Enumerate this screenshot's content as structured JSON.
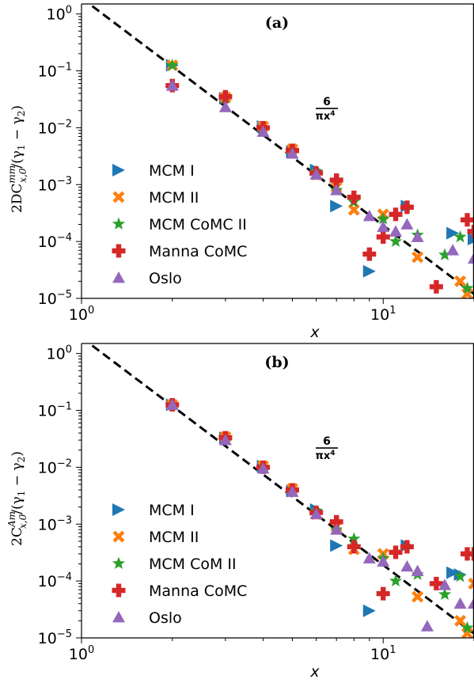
{
  "chart_data": [
    {
      "type": "scatter",
      "panel_label": "(a)",
      "xlabel": "x",
      "ylabel_main": "2DC",
      "ylabel_sup": "mm",
      "ylabel_sub": "x,0",
      "ylabel_tail": "/(γ",
      "ylabel_mid": " − γ",
      "ylabel_end": ")",
      "xscale": "log",
      "yscale": "log",
      "xlim": [
        1,
        20
      ],
      "ylim": [
        1e-05,
        1.5
      ],
      "x_ticks": [
        {
          "base": "10",
          "exp": "0"
        },
        {
          "base": "10",
          "exp": "1"
        }
      ],
      "y_ticks": [
        {
          "base": "10",
          "exp": "−5"
        },
        {
          "base": "10",
          "exp": "−4"
        },
        {
          "base": "10",
          "exp": "−3"
        },
        {
          "base": "10",
          "exp": "−2"
        },
        {
          "base": "10",
          "exp": "−1"
        },
        {
          "base": "10",
          "exp": "0"
        }
      ],
      "annotation": {
        "num": "6",
        "den": "πx",
        "den_exp": "4",
        "x": 8.2,
        "y": 0.018
      },
      "reference_line": {
        "formula": "6/(pi*x^4)",
        "style": "dashed",
        "color": "#000000"
      },
      "legend_position": "lower-left",
      "series": [
        {
          "name": "MCM I",
          "marker": "triangle-right",
          "color": "#1f77b4",
          "points": [
            [
              2,
              0.125
            ],
            [
              3,
              0.033
            ],
            [
              4,
              0.0105
            ],
            [
              5,
              0.0038
            ],
            [
              6,
              0.0018
            ],
            [
              7,
              0.00042
            ],
            [
              9,
              3e-05
            ],
            [
              12,
              0.00042
            ],
            [
              17,
              0.00014
            ],
            [
              20,
              0.00011
            ]
          ]
        },
        {
          "name": "MCM II",
          "marker": "x",
          "color": "#ff7f0e",
          "points": [
            [
              2,
              0.125
            ],
            [
              3,
              0.034
            ],
            [
              4,
              0.0105
            ],
            [
              5,
              0.0042
            ],
            [
              6,
              0.0015
            ],
            [
              7,
              0.0009
            ],
            [
              8,
              0.00036
            ],
            [
              10,
              0.0003
            ],
            [
              13,
              5.3e-05
            ],
            [
              18,
              2e-05
            ],
            [
              19,
              1.2e-05
            ]
          ]
        },
        {
          "name": "MCM CoMC II",
          "marker": "star",
          "color": "#2ca02c",
          "points": [
            [
              2,
              0.125
            ],
            [
              3,
              0.033
            ],
            [
              4,
              0.01
            ],
            [
              5,
              0.004
            ],
            [
              6,
              0.0017
            ],
            [
              7,
              0.0008
            ],
            [
              8,
              0.0005
            ],
            [
              10,
              0.00025
            ],
            [
              11,
              0.0001
            ],
            [
              13,
              0.00013
            ],
            [
              16,
              5.8e-05
            ],
            [
              18,
              0.00012
            ],
            [
              19,
              1.5e-05
            ]
          ]
        },
        {
          "name": "Manna CoMC",
          "marker": "plus",
          "color": "#d62728",
          "points": [
            [
              2,
              0.055
            ],
            [
              3,
              0.035
            ],
            [
              4,
              0.01
            ],
            [
              5,
              0.004
            ],
            [
              6,
              0.0016
            ],
            [
              7,
              0.0012
            ],
            [
              8,
              0.0006
            ],
            [
              9,
              6e-05
            ],
            [
              10,
              0.00012
            ],
            [
              11,
              0.0003
            ],
            [
              12,
              0.0004
            ],
            [
              15,
              1.6e-05
            ],
            [
              19,
              0.00024
            ],
            [
              20,
              0.00015
            ]
          ]
        },
        {
          "name": "Oslo",
          "marker": "triangle-up",
          "color": "#9467bd",
          "points": [
            [
              2,
              0.055
            ],
            [
              3,
              0.023
            ],
            [
              4,
              0.0085
            ],
            [
              5,
              0.0035
            ],
            [
              6,
              0.0015
            ],
            [
              7,
              0.0008
            ],
            [
              9,
              0.00028
            ],
            [
              10,
              0.00018
            ],
            [
              11,
              0.00015
            ],
            [
              12,
              0.0002
            ],
            [
              13,
              0.00012
            ],
            [
              17,
              7e-05
            ],
            [
              20,
              5e-05
            ]
          ]
        }
      ]
    },
    {
      "type": "scatter",
      "panel_label": "(b)",
      "xlabel": "x",
      "ylabel_main": "2C",
      "ylabel_sup": "Am",
      "ylabel_sub": "x,0",
      "ylabel_tail": "/(γ",
      "ylabel_mid": " − γ",
      "ylabel_end": ")",
      "xscale": "log",
      "yscale": "log",
      "xlim": [
        1,
        20
      ],
      "ylim": [
        1e-05,
        1.5
      ],
      "x_ticks": [
        {
          "base": "10",
          "exp": "0"
        },
        {
          "base": "10",
          "exp": "1"
        }
      ],
      "y_ticks": [
        {
          "base": "10",
          "exp": "−5"
        },
        {
          "base": "10",
          "exp": "−4"
        },
        {
          "base": "10",
          "exp": "−3"
        },
        {
          "base": "10",
          "exp": "−2"
        },
        {
          "base": "10",
          "exp": "−1"
        },
        {
          "base": "10",
          "exp": "0"
        }
      ],
      "annotation": {
        "num": "6",
        "den": "πx",
        "den_exp": "4",
        "x": 8.2,
        "y": 0.018
      },
      "reference_line": {
        "formula": "6/(pi*x^4)",
        "style": "dashed",
        "color": "#000000"
      },
      "legend_position": "lower-left",
      "series": [
        {
          "name": "MCM I",
          "marker": "triangle-right",
          "color": "#1f77b4",
          "points": [
            [
              2,
              0.125
            ],
            [
              3,
              0.033
            ],
            [
              4,
              0.0105
            ],
            [
              5,
              0.0038
            ],
            [
              6,
              0.0018
            ],
            [
              7,
              0.00042
            ],
            [
              9,
              3e-05
            ],
            [
              12,
              0.00042
            ],
            [
              17,
              0.00014
            ],
            [
              18,
              0.00013
            ]
          ]
        },
        {
          "name": "MCM II",
          "marker": "x",
          "color": "#ff7f0e",
          "points": [
            [
              2,
              0.125
            ],
            [
              3,
              0.034
            ],
            [
              4,
              0.0105
            ],
            [
              5,
              0.0042
            ],
            [
              6,
              0.0015
            ],
            [
              7,
              0.0009
            ],
            [
              8,
              0.00036
            ],
            [
              10,
              0.0003
            ],
            [
              13,
              5.3e-05
            ],
            [
              18,
              2e-05
            ],
            [
              19,
              1.2e-05
            ],
            [
              20,
              9e-05
            ]
          ]
        },
        {
          "name": "MCM CoM II",
          "marker": "star",
          "color": "#2ca02c",
          "points": [
            [
              2,
              0.125
            ],
            [
              3,
              0.033
            ],
            [
              4,
              0.01
            ],
            [
              5,
              0.004
            ],
            [
              6,
              0.0017
            ],
            [
              7,
              0.0008
            ],
            [
              8,
              0.00055
            ],
            [
              10,
              0.00025
            ],
            [
              11,
              0.0001
            ],
            [
              13,
              0.00013
            ],
            [
              16,
              5.8e-05
            ],
            [
              18,
              0.00012
            ],
            [
              19,
              1.5e-05
            ]
          ]
        },
        {
          "name": "Manna CoMC",
          "marker": "plus",
          "color": "#d62728",
          "points": [
            [
              2,
              0.125
            ],
            [
              3,
              0.033
            ],
            [
              4,
              0.01
            ],
            [
              5,
              0.004
            ],
            [
              6,
              0.0016
            ],
            [
              7,
              0.0011
            ],
            [
              8,
              0.0004
            ],
            [
              10,
              6e-05
            ],
            [
              11,
              0.00032
            ],
            [
              12,
              0.0004
            ],
            [
              15,
              9e-05
            ],
            [
              19,
              0.0003
            ],
            [
              20,
              0.0003
            ]
          ]
        },
        {
          "name": "Oslo",
          "marker": "triangle-up",
          "color": "#9467bd",
          "points": [
            [
              2,
              0.125
            ],
            [
              3,
              0.03
            ],
            [
              4,
              0.0095
            ],
            [
              5,
              0.0037
            ],
            [
              6,
              0.0015
            ],
            [
              7,
              0.0008
            ],
            [
              9,
              0.00025
            ],
            [
              10,
              0.00022
            ],
            [
              12,
              0.00018
            ],
            [
              13,
              0.00015
            ],
            [
              14,
              1.6e-05
            ],
            [
              16,
              8.5e-05
            ],
            [
              18,
              4e-05
            ],
            [
              20,
              4e-05
            ]
          ]
        }
      ]
    }
  ]
}
